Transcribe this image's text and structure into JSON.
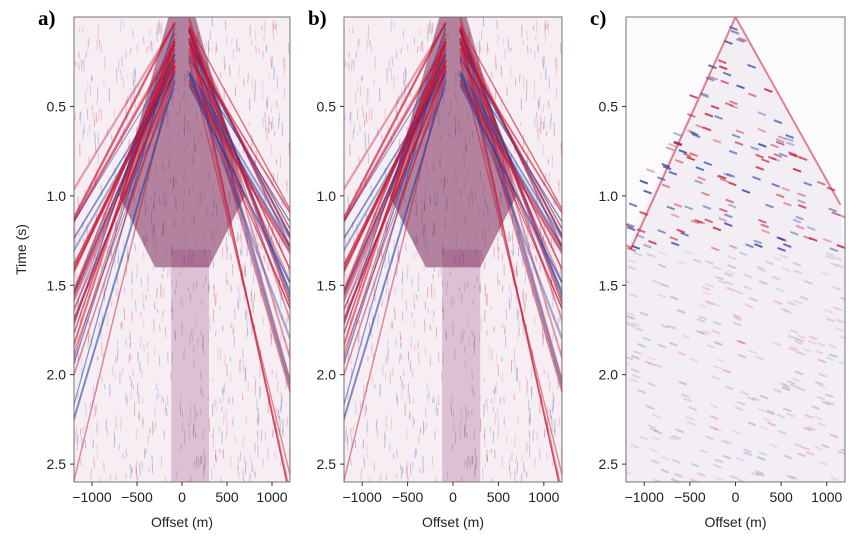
{
  "chart_data": [
    {
      "type": "image",
      "label": "a)",
      "xlabel": "Offset (m)",
      "ylabel": "Time (s)",
      "xlim": [
        -1200,
        1200
      ],
      "xticks": [
        {
          "value": -1000,
          "label": "−1000"
        },
        {
          "value": -500,
          "label": "−500"
        },
        0,
        500,
        1000
      ],
      "ylim": [
        0,
        2.6
      ],
      "yticks": [
        0.5,
        {
          "value": 1,
          "label": "1.0"
        },
        1.5,
        {
          "value": 2,
          "label": "2.0"
        },
        2.5
      ],
      "y_inverted": true,
      "colormap": [
        "#1f3f9f",
        "#ffffff",
        "#c8102e"
      ]
    },
    {
      "type": "image",
      "label": "b)",
      "xlabel": "Offset (m)",
      "xlim": [
        -1200,
        1200
      ],
      "xticks": [
        {
          "value": -1000,
          "label": "−1000"
        },
        {
          "value": -500,
          "label": "−500"
        },
        0,
        500,
        1000
      ],
      "ylim": [
        0,
        2.6
      ],
      "yticks": [
        0.5,
        {
          "value": 1,
          "label": "1.0"
        },
        1.5,
        {
          "value": 2,
          "label": "2.0"
        },
        2.5
      ],
      "y_inverted": true,
      "colormap": [
        "#1f3f9f",
        "#ffffff",
        "#c8102e"
      ]
    },
    {
      "type": "image",
      "label": "c)",
      "xlabel": "Offset (m)",
      "xlim": [
        -1200,
        1200
      ],
      "xticks": [
        {
          "value": -1000,
          "label": "−1000"
        },
        {
          "value": -500,
          "label": "−500"
        },
        0,
        500,
        1000
      ],
      "ylim": [
        0,
        2.6
      ],
      "yticks": [
        0.5,
        {
          "value": 1,
          "label": "1.0"
        },
        1.5,
        {
          "value": 2,
          "label": "2.0"
        },
        2.5
      ],
      "y_inverted": true,
      "colormap": [
        "#1f3f9f",
        "#ffffff",
        "#c8102e"
      ]
    }
  ]
}
